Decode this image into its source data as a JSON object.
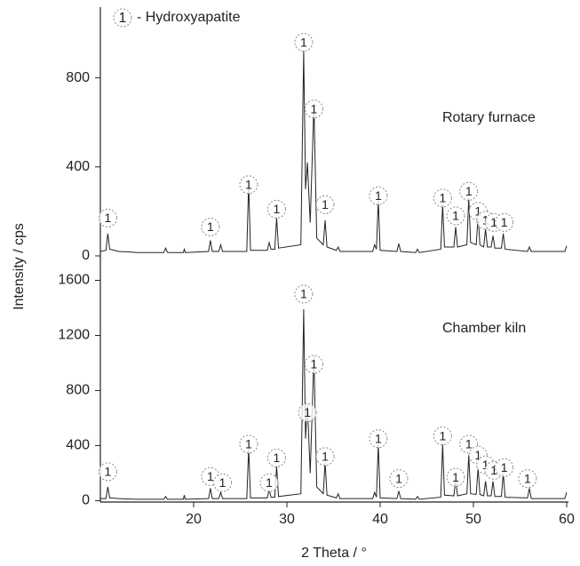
{
  "chart_data": [
    {
      "type": "line",
      "legend": {
        "symbol": "1",
        "text": "- Hydroxyapatite"
      },
      "ylabel": "Intensity / cps",
      "ylim": [
        -40,
        1110
      ],
      "yticks": [
        0,
        400,
        800
      ],
      "xlim": [
        10,
        60
      ],
      "series": [
        {
          "name": "Rotary furnace",
          "color": "#222222",
          "x": [
            10.0,
            10.6,
            10.8,
            11.0,
            12,
            13,
            14,
            15,
            16.8,
            17,
            17.2,
            18.9,
            19,
            19.1,
            21.6,
            21.8,
            22.0,
            22.7,
            22.9,
            23.1,
            25.7,
            25.9,
            26.1,
            27.9,
            28.1,
            28.3,
            28.7,
            28.9,
            29.1,
            31.5,
            31.8,
            32.0,
            32.2,
            32.5,
            32.9,
            33.2,
            33.9,
            34.1,
            34.3,
            35.3,
            35.5,
            35.7,
            39.2,
            39.4,
            39.6,
            39.8,
            40.0,
            41.8,
            42.0,
            42.2,
            43.8,
            44,
            44.2,
            46.5,
            46.7,
            46.9,
            47.9,
            48.1,
            48.3,
            49.3,
            49.5,
            49.7,
            50.3,
            50.5,
            50.7,
            51.1,
            51.3,
            51.5,
            51.9,
            52.1,
            52.3,
            53.0,
            53.2,
            53.4,
            55.8,
            56.0,
            56.2,
            57,
            58,
            59.8,
            60.0
          ],
          "values": [
            20,
            25,
            100,
            30,
            20,
            18,
            15,
            15,
            15,
            35,
            15,
            15,
            30,
            15,
            20,
            70,
            20,
            20,
            50,
            20,
            20,
            330,
            25,
            25,
            60,
            30,
            30,
            170,
            35,
            50,
            920,
            300,
            420,
            150,
            680,
            80,
            50,
            160,
            40,
            25,
            40,
            20,
            20,
            50,
            30,
            250,
            25,
            20,
            55,
            20,
            15,
            30,
            15,
            30,
            230,
            40,
            40,
            130,
            40,
            50,
            260,
            60,
            50,
            180,
            50,
            40,
            120,
            40,
            40,
            90,
            35,
            35,
            100,
            30,
            20,
            40,
            20,
            20,
            20,
            20,
            45
          ]
        }
      ],
      "peak_labels": [
        {
          "label": "1",
          "x": 10.8,
          "y": 170
        },
        {
          "label": "1",
          "x": 21.8,
          "y": 130
        },
        {
          "label": "1",
          "x": 25.9,
          "y": 320
        },
        {
          "label": "1",
          "x": 28.9,
          "y": 210
        },
        {
          "label": "1",
          "x": 31.8,
          "y": 960
        },
        {
          "label": "1",
          "x": 32.9,
          "y": 660
        },
        {
          "label": "1",
          "x": 34.1,
          "y": 230
        },
        {
          "label": "1",
          "x": 39.8,
          "y": 270
        },
        {
          "label": "1",
          "x": 46.7,
          "y": 260
        },
        {
          "label": "1",
          "x": 48.1,
          "y": 180
        },
        {
          "label": "1",
          "x": 49.5,
          "y": 290
        },
        {
          "label": "1",
          "x": 50.5,
          "y": 200
        },
        {
          "label": "1",
          "x": 51.3,
          "y": 160
        },
        {
          "label": "1",
          "x": 52.2,
          "y": 150
        },
        {
          "label": "1",
          "x": 53.3,
          "y": 150
        }
      ]
    },
    {
      "type": "line",
      "xlabel": "2 Theta / °",
      "ylim": [
        -10,
        1700
      ],
      "yticks": [
        0,
        400,
        800,
        1200,
        1600
      ],
      "xlim": [
        10,
        60
      ],
      "xticks": [
        20,
        30,
        40,
        50,
        60
      ],
      "series": [
        {
          "name": "Chamber kiln",
          "color": "#222222",
          "x": [
            10.0,
            10.6,
            10.8,
            11.0,
            12,
            13,
            14,
            15,
            16.8,
            17,
            17.2,
            18.9,
            19,
            19.1,
            21.6,
            21.8,
            22.0,
            22.7,
            22.9,
            23.1,
            25.7,
            25.9,
            26.1,
            27.9,
            28.1,
            28.3,
            28.7,
            28.9,
            29.1,
            31.5,
            31.8,
            32.0,
            32.2,
            32.5,
            32.9,
            33.2,
            33.9,
            34.1,
            34.3,
            35.3,
            35.5,
            35.7,
            39.2,
            39.4,
            39.6,
            39.8,
            40.0,
            41.8,
            42.0,
            42.2,
            43.8,
            44,
            44.2,
            46.5,
            46.7,
            46.9,
            47.9,
            48.1,
            48.3,
            49.3,
            49.5,
            49.7,
            50.3,
            50.5,
            50.7,
            51.1,
            51.3,
            51.5,
            51.9,
            52.1,
            52.3,
            53.0,
            53.2,
            53.4,
            55.8,
            56.0,
            56.2,
            57,
            58,
            59.8,
            60.0
          ],
          "values": [
            15,
            15,
            100,
            20,
            15,
            12,
            10,
            10,
            10,
            30,
            10,
            10,
            40,
            10,
            15,
            90,
            15,
            15,
            60,
            15,
            15,
            380,
            20,
            20,
            80,
            25,
            25,
            250,
            30,
            50,
            1390,
            450,
            700,
            200,
            1050,
            100,
            50,
            280,
            40,
            20,
            50,
            15,
            15,
            60,
            25,
            410,
            20,
            15,
            70,
            15,
            10,
            30,
            10,
            25,
            410,
            40,
            35,
            150,
            35,
            50,
            330,
            50,
            45,
            240,
            45,
            35,
            140,
            35,
            35,
            140,
            30,
            30,
            200,
            25,
            20,
            90,
            15,
            15,
            15,
            15,
            60
          ]
        }
      ],
      "peak_labels": [
        {
          "label": "1",
          "x": 10.8,
          "y": 210
        },
        {
          "label": "1",
          "x": 21.8,
          "y": 175
        },
        {
          "label": "1",
          "x": 23.1,
          "y": 130
        },
        {
          "label": "1",
          "x": 25.9,
          "y": 410
        },
        {
          "label": "1",
          "x": 28.1,
          "y": 130
        },
        {
          "label": "1",
          "x": 28.9,
          "y": 310
        },
        {
          "label": "1",
          "x": 31.8,
          "y": 1500
        },
        {
          "label": "1",
          "x": 32.2,
          "y": 640
        },
        {
          "label": "1",
          "x": 32.9,
          "y": 990
        },
        {
          "label": "1",
          "x": 34.1,
          "y": 320
        },
        {
          "label": "1",
          "x": 39.8,
          "y": 450
        },
        {
          "label": "1",
          "x": 42.0,
          "y": 160
        },
        {
          "label": "1",
          "x": 46.7,
          "y": 470
        },
        {
          "label": "1",
          "x": 48.1,
          "y": 170
        },
        {
          "label": "1",
          "x": 49.5,
          "y": 410
        },
        {
          "label": "1",
          "x": 50.5,
          "y": 330
        },
        {
          "label": "1",
          "x": 51.3,
          "y": 260
        },
        {
          "label": "1",
          "x": 52.2,
          "y": 220
        },
        {
          "label": "1",
          "x": 53.3,
          "y": 240
        },
        {
          "label": "1",
          "x": 55.8,
          "y": 160
        }
      ]
    }
  ]
}
